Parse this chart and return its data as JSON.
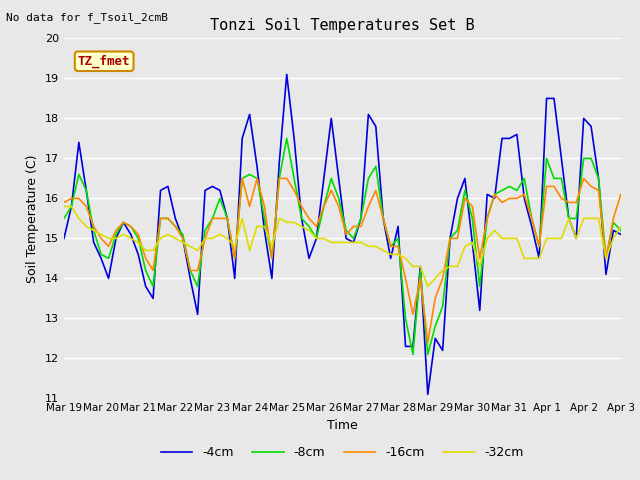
{
  "title": "Tonzi Soil Temperatures Set B",
  "xlabel": "Time",
  "ylabel": "Soil Temperature (C)",
  "no_data_text": "No data for f_Tsoil_2cmB",
  "annotation_text": "TZ_fmet",
  "ylim": [
    11.0,
    20.0
  ],
  "yticks": [
    11.0,
    12.0,
    13.0,
    14.0,
    15.0,
    16.0,
    17.0,
    18.0,
    19.0,
    20.0
  ],
  "xtick_labels": [
    "Mar 19",
    "Mar 20",
    "Mar 21",
    "Mar 22",
    "Mar 23",
    "Mar 24",
    "Mar 25",
    "Mar 26",
    "Mar 27",
    "Mar 28",
    "Mar 29",
    "Mar 30",
    "Mar 31",
    "Apr 1",
    "Apr 2",
    "Apr 3"
  ],
  "colors": {
    "4cm": "#0000dd",
    "8cm": "#00dd00",
    "16cm": "#ff8800",
    "32cm": "#dddd00"
  },
  "legend_labels": [
    "-4cm",
    "-8cm",
    "-16cm",
    "-32cm"
  ],
  "background_color": "#e8e8e8",
  "plot_bg_color": "#e8e8e8",
  "grid_color": "#ffffff",
  "t_4cm": [
    15.0,
    15.8,
    17.4,
    16.2,
    14.9,
    14.5,
    14.0,
    15.0,
    15.4,
    15.1,
    14.6,
    13.8,
    13.5,
    16.2,
    16.3,
    15.5,
    15.0,
    14.0,
    13.1,
    16.2,
    16.3,
    16.2,
    15.5,
    14.0,
    17.5,
    18.1,
    16.8,
    15.2,
    14.0,
    16.9,
    19.1,
    17.5,
    15.5,
    14.5,
    15.0,
    16.5,
    18.0,
    16.5,
    15.0,
    14.9,
    15.5,
    18.1,
    17.8,
    15.5,
    14.5,
    15.3,
    12.3,
    12.3,
    14.3,
    11.1,
    12.5,
    12.2,
    15.0,
    16.0,
    16.5,
    14.9,
    13.2,
    16.1,
    16.0,
    17.5,
    17.5,
    17.6,
    16.0,
    15.3,
    14.5,
    18.5,
    18.5,
    17.0,
    15.5,
    15.0,
    18.0,
    17.8,
    16.5,
    14.1,
    15.2,
    15.1
  ],
  "t_8cm": [
    15.5,
    15.8,
    16.6,
    16.2,
    15.2,
    14.6,
    14.5,
    15.1,
    15.4,
    15.3,
    15.0,
    14.2,
    13.8,
    15.5,
    15.5,
    15.3,
    15.1,
    14.2,
    13.8,
    15.2,
    15.5,
    16.0,
    15.5,
    14.5,
    16.5,
    16.6,
    16.5,
    15.5,
    14.5,
    16.5,
    17.5,
    16.5,
    15.5,
    15.3,
    15.0,
    15.8,
    16.5,
    16.0,
    15.2,
    15.0,
    15.5,
    16.5,
    16.8,
    15.5,
    14.8,
    15.0,
    13.0,
    12.1,
    14.2,
    12.1,
    12.8,
    13.3,
    15.0,
    15.2,
    16.2,
    15.5,
    13.8,
    15.5,
    16.1,
    16.2,
    16.3,
    16.2,
    16.5,
    15.5,
    14.8,
    17.0,
    16.5,
    16.5,
    15.5,
    15.5,
    17.0,
    17.0,
    16.5,
    14.5,
    15.4,
    15.2
  ],
  "t_16cm": [
    15.9,
    16.0,
    16.0,
    15.8,
    15.3,
    15.0,
    14.8,
    15.2,
    15.4,
    15.3,
    15.1,
    14.5,
    14.2,
    15.5,
    15.5,
    15.3,
    15.0,
    14.2,
    14.2,
    15.0,
    15.5,
    15.5,
    15.5,
    14.5,
    16.5,
    15.8,
    16.5,
    15.8,
    14.5,
    16.5,
    16.5,
    16.2,
    15.8,
    15.5,
    15.3,
    15.8,
    16.2,
    15.8,
    15.1,
    15.3,
    15.3,
    15.8,
    16.2,
    15.5,
    14.8,
    14.8,
    14.0,
    13.1,
    14.0,
    12.4,
    13.5,
    14.0,
    15.0,
    15.0,
    16.0,
    15.8,
    14.5,
    15.5,
    16.1,
    15.9,
    16.0,
    16.0,
    16.1,
    15.5,
    14.8,
    16.3,
    16.3,
    16.0,
    15.9,
    15.9,
    16.5,
    16.3,
    16.2,
    14.5,
    15.5,
    16.1
  ],
  "t_32cm": [
    15.8,
    15.8,
    15.5,
    15.3,
    15.2,
    15.1,
    15.0,
    15.0,
    15.1,
    15.0,
    14.9,
    14.7,
    14.7,
    15.0,
    15.1,
    15.0,
    14.9,
    14.8,
    14.7,
    15.0,
    15.0,
    15.1,
    15.0,
    14.8,
    15.5,
    14.7,
    15.3,
    15.3,
    14.8,
    15.5,
    15.4,
    15.4,
    15.3,
    15.2,
    15.0,
    15.0,
    14.9,
    14.9,
    14.9,
    14.9,
    14.9,
    14.8,
    14.8,
    14.7,
    14.6,
    14.6,
    14.5,
    14.3,
    14.3,
    13.8,
    14.0,
    14.2,
    14.3,
    14.3,
    14.8,
    14.9,
    14.3,
    15.0,
    15.2,
    15.0,
    15.0,
    15.0,
    14.5,
    14.5,
    14.5,
    15.0,
    15.0,
    15.0,
    15.5,
    15.0,
    15.5,
    15.5,
    15.5,
    14.5,
    15.0,
    15.3
  ]
}
